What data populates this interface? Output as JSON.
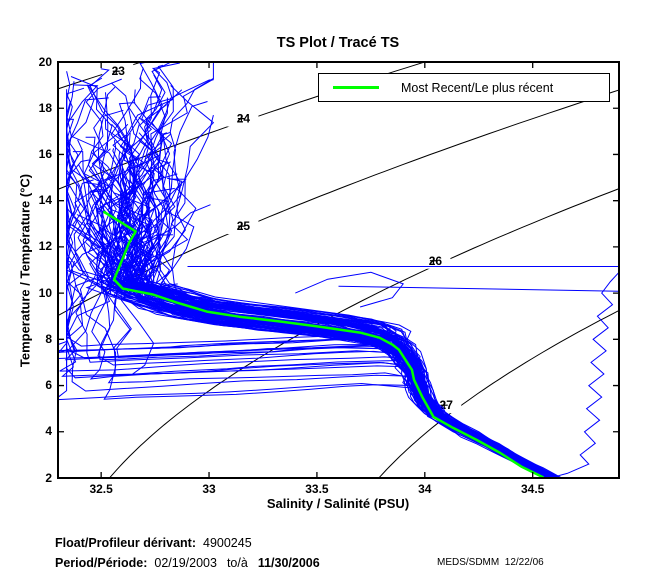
{
  "figure": {
    "title": "TS Plot / Tracé TS",
    "credit": "MEDS/SDMM  12/22/06"
  },
  "legend": {
    "most_recent_label": "Most Recent/Le plus récent"
  },
  "footer": {
    "float_label": "Float/Profileur dérivant:",
    "float_value": "4900245",
    "period_label": "Period/Période:",
    "period_start": "02/19/2003",
    "period_sep": "to/à",
    "period_end": "11/30/2006"
  },
  "chart_data": {
    "type": "line",
    "title": "TS Plot / Tracé TS",
    "xlabel": "Salinity / Salinité (PSU)",
    "ylabel": "Temperature / Température (°C)",
    "xlim": [
      32.3,
      34.9
    ],
    "ylim": [
      2,
      20
    ],
    "x_ticks": [
      32.5,
      33,
      33.5,
      34,
      34.5
    ],
    "x_tick_labels": [
      "32.5",
      "33",
      "33.5",
      "34",
      "34.5"
    ],
    "y_ticks": [
      2,
      4,
      6,
      8,
      10,
      12,
      14,
      16,
      18,
      20
    ],
    "grid": false,
    "legend_position": "top-right-inside",
    "colors": {
      "profiles": "#0000ff",
      "most_recent": "#00ff00",
      "isopycnals": "#000000",
      "frame": "#000000"
    },
    "isopycnals": {
      "levels": [
        23,
        24,
        25,
        26,
        27
      ],
      "label_anchors_ST": [
        [
          32.57,
          19.6
        ],
        [
          33.15,
          17.55
        ],
        [
          33.15,
          12.9
        ],
        [
          34.04,
          11.4
        ],
        [
          34.09,
          5.15
        ]
      ]
    },
    "most_recent_profile_ST": [
      [
        32.51,
        13.53
      ],
      [
        32.66,
        12.67
      ],
      [
        32.63,
        12.19
      ],
      [
        32.56,
        10.59
      ],
      [
        32.6,
        10.2
      ],
      [
        32.74,
        9.94
      ],
      [
        32.85,
        9.59
      ],
      [
        32.99,
        9.2
      ],
      [
        33.14,
        8.98
      ],
      [
        33.33,
        8.77
      ],
      [
        33.51,
        8.55
      ],
      [
        33.7,
        8.29
      ],
      [
        33.79,
        8.07
      ],
      [
        33.85,
        7.77
      ],
      [
        33.88,
        7.55
      ],
      [
        33.94,
        6.68
      ],
      [
        33.95,
        6.25
      ],
      [
        33.99,
        5.47
      ],
      [
        34.04,
        4.65
      ],
      [
        34.13,
        4.17
      ],
      [
        34.24,
        3.65
      ],
      [
        34.35,
        3.08
      ],
      [
        34.45,
        2.48
      ],
      [
        34.55,
        2.02
      ]
    ],
    "profile_ensemble": {
      "count": 130,
      "seed": 20031219,
      "spine_TS": [
        [
          2.0,
          34.6
        ],
        [
          2.5,
          34.49
        ],
        [
          3.0,
          34.39
        ],
        [
          3.6,
          34.27
        ],
        [
          4.2,
          34.15
        ],
        [
          4.7,
          34.06
        ],
        [
          5.2,
          34.01
        ],
        [
          5.9,
          33.97
        ],
        [
          6.6,
          33.95
        ],
        [
          7.3,
          33.91
        ],
        [
          7.7,
          33.87
        ],
        [
          8.0,
          33.82
        ],
        [
          8.3,
          33.72
        ],
        [
          8.6,
          33.53
        ],
        [
          8.85,
          33.33
        ],
        [
          9.1,
          33.08
        ],
        [
          9.3,
          32.95
        ],
        [
          9.6,
          32.85
        ],
        [
          10.0,
          32.72
        ],
        [
          10.6,
          32.58
        ]
      ],
      "top_T_range": [
        9.8,
        20.25
      ],
      "top_S_range": [
        32.34,
        33.02
      ]
    },
    "outlier_profiles_ST": [
      [
        [
          32.9,
          11.15
        ],
        [
          34.9,
          11.15
        ],
        [
          34.9,
          10.9
        ],
        [
          34.86,
          10.5
        ],
        [
          34.82,
          10.0
        ],
        [
          34.87,
          9.5
        ],
        [
          34.8,
          9.0
        ],
        [
          34.85,
          8.5
        ],
        [
          34.78,
          8.0
        ],
        [
          34.84,
          7.5
        ],
        [
          34.77,
          7.0
        ],
        [
          34.83,
          6.5
        ],
        [
          34.76,
          6.0
        ],
        [
          34.82,
          5.5
        ],
        [
          34.75,
          5.0
        ],
        [
          34.81,
          4.5
        ],
        [
          34.74,
          4.0
        ],
        [
          34.79,
          3.5
        ],
        [
          34.72,
          3.0
        ],
        [
          34.76,
          2.6
        ],
        [
          34.66,
          2.2
        ],
        [
          34.6,
          2.05
        ]
      ],
      [
        [
          33.6,
          10.3
        ],
        [
          34.9,
          10.08
        ]
      ],
      [
        [
          33.4,
          10.0
        ],
        [
          33.55,
          10.6
        ],
        [
          33.75,
          10.9
        ],
        [
          33.9,
          10.4
        ],
        [
          33.85,
          9.8
        ],
        [
          33.7,
          9.4
        ]
      ]
    ]
  }
}
